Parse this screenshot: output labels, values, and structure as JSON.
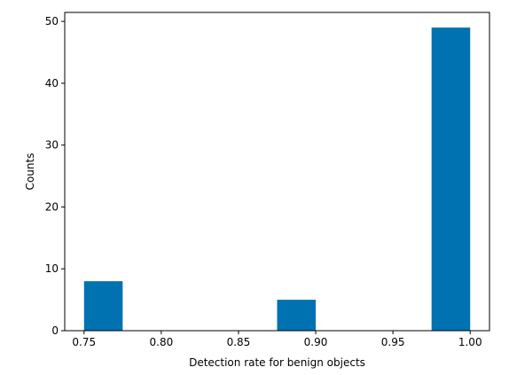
{
  "chart_data": {
    "type": "bar",
    "histogram": true,
    "bin_edges": [
      0.75,
      0.775,
      0.8,
      0.825,
      0.85,
      0.875,
      0.9,
      0.925,
      0.95,
      0.975,
      1.0
    ],
    "counts": [
      8,
      0,
      0,
      0,
      0,
      5,
      0,
      0,
      0,
      49
    ],
    "xlabel": "Detection rate for benign objects",
    "ylabel": "Counts",
    "xlim": [
      0.7375,
      1.0125
    ],
    "ylim": [
      0,
      51.45
    ],
    "x_ticks": [
      {
        "value": 0.75,
        "label": "0.75"
      },
      {
        "value": 0.8,
        "label": "0.80"
      },
      {
        "value": 0.85,
        "label": "0.85"
      },
      {
        "value": 0.9,
        "label": "0.90"
      },
      {
        "value": 0.95,
        "label": "0.95"
      },
      {
        "value": 1.0,
        "label": "1.00"
      }
    ],
    "y_ticks": [
      {
        "value": 0,
        "label": "0"
      },
      {
        "value": 10,
        "label": "10"
      },
      {
        "value": 20,
        "label": "20"
      },
      {
        "value": 30,
        "label": "30"
      },
      {
        "value": 40,
        "label": "40"
      },
      {
        "value": 50,
        "label": "50"
      }
    ],
    "grid": false,
    "bar_color": "#0072b2"
  }
}
